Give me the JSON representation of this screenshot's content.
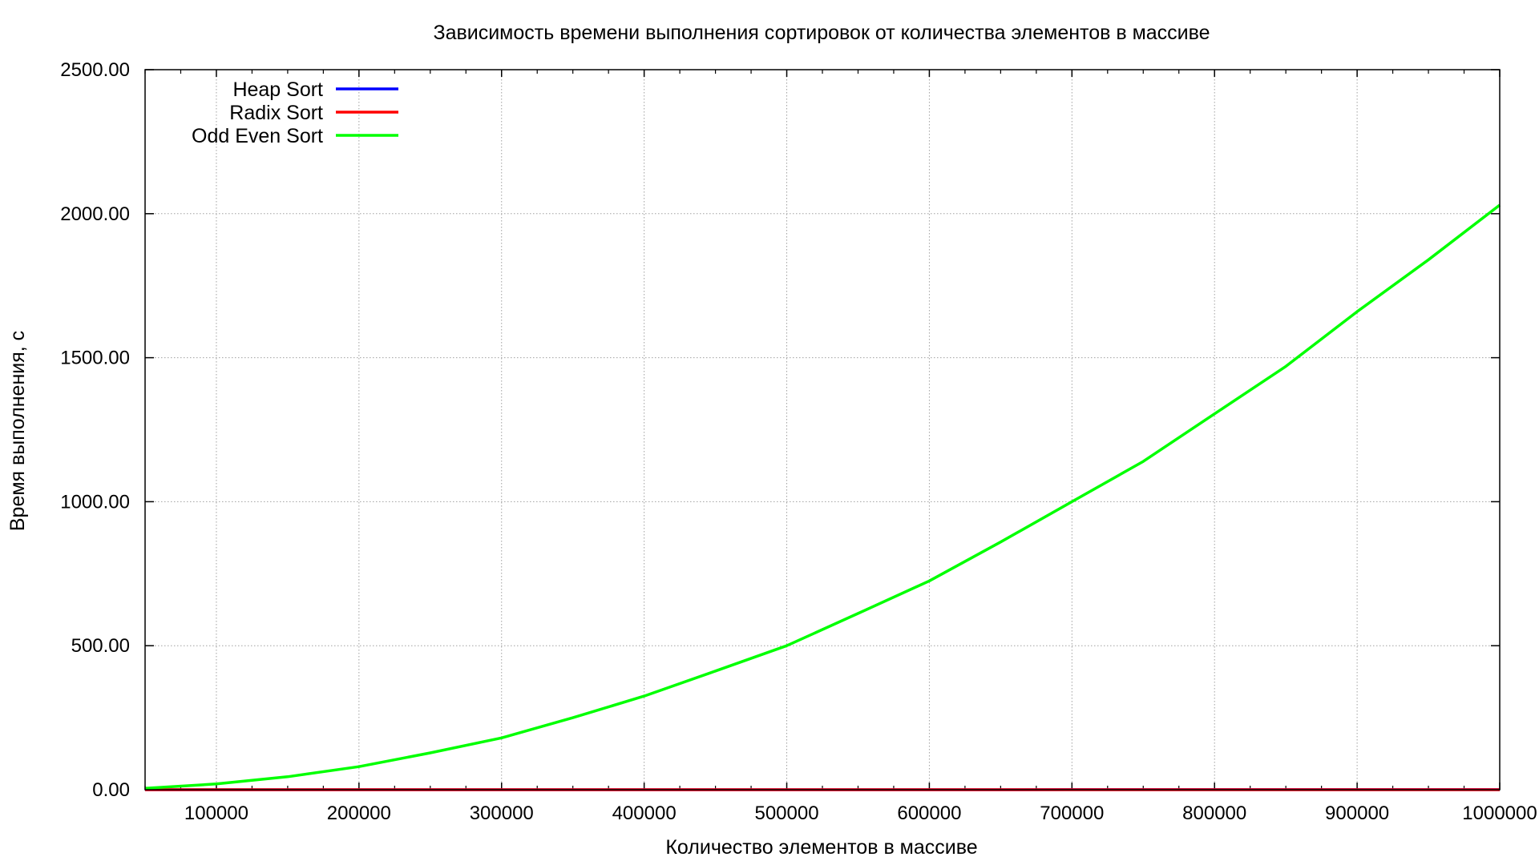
{
  "chart_data": {
    "type": "line",
    "title": "Зависимость времени выполнения сортировок от количества элементов в массиве",
    "xlabel": "Количество элементов в массиве",
    "ylabel": "Время выполнения, с",
    "xlim": [
      50000,
      1000000
    ],
    "ylim": [
      0,
      2500
    ],
    "x_ticks": [
      100000,
      200000,
      300000,
      400000,
      500000,
      600000,
      700000,
      800000,
      900000,
      1000000
    ],
    "x_tick_labels": [
      "100000",
      "200000",
      "300000",
      "400000",
      "500000",
      "600000",
      "700000",
      "800000",
      "900000",
      "1000000"
    ],
    "y_ticks": [
      0,
      500,
      1000,
      1500,
      2000,
      2500
    ],
    "y_tick_labels": [
      "0.00",
      "500.00",
      "1000.00",
      "1500.00",
      "2000.00",
      "2500.00"
    ],
    "grid": true,
    "legend_position": "top-left",
    "x": [
      50000,
      100000,
      150000,
      200000,
      250000,
      300000,
      350000,
      400000,
      450000,
      500000,
      550000,
      600000,
      650000,
      700000,
      750000,
      800000,
      850000,
      900000,
      950000,
      1000000
    ],
    "series": [
      {
        "name": "Heap Sort",
        "color": "#0000ff",
        "values": [
          0.01,
          0.02,
          0.03,
          0.04,
          0.05,
          0.06,
          0.07,
          0.08,
          0.09,
          0.1,
          0.11,
          0.12,
          0.13,
          0.14,
          0.15,
          0.16,
          0.17,
          0.18,
          0.19,
          0.2
        ]
      },
      {
        "name": "Radix Sort",
        "color": "#ff0000",
        "values": [
          0.005,
          0.01,
          0.015,
          0.02,
          0.025,
          0.03,
          0.035,
          0.04,
          0.045,
          0.05,
          0.055,
          0.06,
          0.065,
          0.07,
          0.075,
          0.08,
          0.085,
          0.09,
          0.095,
          0.1
        ]
      },
      {
        "name": "Odd Even Sort",
        "color": "#00ff00",
        "values": [
          5,
          20,
          45,
          80,
          128,
          180,
          250,
          325,
          412,
          500,
          612,
          725,
          860,
          1000,
          1140,
          1305,
          1470,
          1660,
          1840,
          2030
        ]
      }
    ]
  }
}
